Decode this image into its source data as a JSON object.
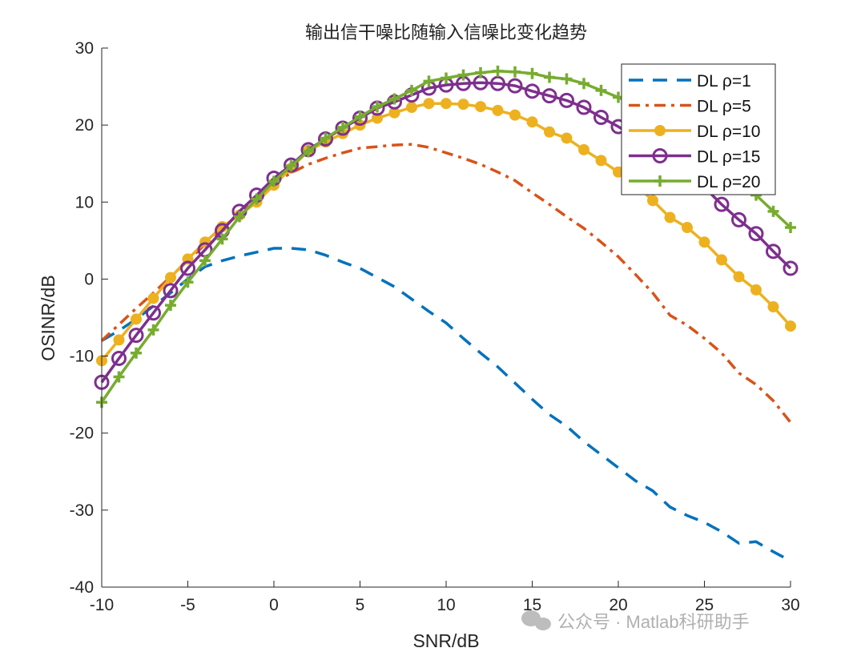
{
  "chart_data": {
    "type": "line",
    "title": "输出信干噪比随输入信噪比变化趋势",
    "xlabel": "SNR/dB",
    "ylabel": "OSINR/dB",
    "xlim": [
      -10,
      30
    ],
    "ylim": [
      -40,
      30
    ],
    "xticks": [
      -10,
      -5,
      0,
      5,
      10,
      15,
      20,
      25,
      30
    ],
    "yticks": [
      -40,
      -30,
      -20,
      -10,
      0,
      10,
      20,
      30
    ],
    "grid": false,
    "legend_position": "top-right",
    "x": [
      -10,
      -9,
      -8,
      -7,
      -6,
      -5,
      -4,
      -3,
      -2,
      -1,
      0,
      1,
      2,
      3,
      4,
      5,
      6,
      7,
      8,
      9,
      10,
      11,
      12,
      13,
      14,
      15,
      16,
      17,
      18,
      19,
      20,
      21,
      22,
      23,
      24,
      25,
      26,
      27,
      28,
      29,
      30
    ],
    "series": [
      {
        "name": "DL ρ=1",
        "color": "#0072BD",
        "style": "dashed",
        "marker": "none",
        "values": [
          -8,
          -6.7,
          -5.2,
          -3.5,
          -1.8,
          0,
          1.6,
          2.4,
          3,
          3.5,
          4,
          4,
          3.8,
          3.1,
          2.2,
          1.4,
          0.2,
          -1,
          -2.6,
          -4.2,
          -5.7,
          -7.7,
          -9.6,
          -11.4,
          -13.5,
          -15.6,
          -17.6,
          -19.1,
          -21.1,
          -22.8,
          -24.5,
          -26.2,
          -27.5,
          -29.6,
          -30.7,
          -31.6,
          -32.8,
          -34.3,
          -34.1,
          -35.4,
          -36.6
        ]
      },
      {
        "name": "DL ρ=5",
        "color": "#D95319",
        "style": "dashdot",
        "marker": "none",
        "values": [
          -8,
          -5.9,
          -3.8,
          -1.8,
          0.3,
          2.4,
          4.5,
          6.6,
          8.6,
          10.5,
          12.5,
          13.8,
          14.9,
          15.7,
          16.4,
          17,
          17.2,
          17.4,
          17.5,
          17.1,
          16.4,
          15.7,
          14.9,
          13.9,
          12.8,
          11.2,
          9.7,
          8.1,
          6.6,
          4.8,
          2.9,
          0.6,
          -1.8,
          -4.7,
          -6,
          -7.7,
          -9.6,
          -12.2,
          -13.7,
          -15.8,
          -18.6
        ]
      },
      {
        "name": "DL ρ=10",
        "color": "#EDB120",
        "style": "solid",
        "marker": "filled-circle",
        "values": [
          -10.6,
          -7.9,
          -5.2,
          -2.5,
          0.2,
          2.6,
          4.8,
          6.8,
          8.3,
          10,
          12.2,
          14.4,
          16.7,
          17.8,
          18.9,
          20,
          20.9,
          21.6,
          22.3,
          22.8,
          22.8,
          22.7,
          22.4,
          21.9,
          21.3,
          20.4,
          19.1,
          18.3,
          16.8,
          15.4,
          13.9,
          12.3,
          10.2,
          8,
          6.7,
          4.8,
          2.5,
          0.3,
          -1.4,
          -3.6,
          -6.1
        ]
      },
      {
        "name": "DL ρ=15",
        "color": "#7E2F8E",
        "style": "solid",
        "marker": "open-circle",
        "values": [
          -13.4,
          -10.3,
          -7.3,
          -4.4,
          -1.5,
          1.4,
          3.8,
          6.3,
          8.8,
          10.9,
          13.1,
          14.8,
          16.8,
          18.2,
          19.6,
          20.9,
          22.2,
          23,
          23.9,
          24.8,
          25.2,
          25.4,
          25.5,
          25.4,
          25.1,
          24.4,
          23.8,
          23.2,
          22.3,
          21,
          19.8,
          18.4,
          17.1,
          15.6,
          13.8,
          11.9,
          9.7,
          7.7,
          5.9,
          3.6,
          1.4
        ]
      },
      {
        "name": "DL ρ=20",
        "color": "#77AC30",
        "style": "solid",
        "marker": "plus",
        "values": [
          -16,
          -12.7,
          -9.6,
          -6.6,
          -3.4,
          -0.4,
          2.4,
          5.2,
          8.1,
          10.4,
          12.7,
          14.7,
          16.6,
          18.3,
          19.7,
          21.1,
          22.4,
          23.4,
          24.5,
          25.7,
          26.1,
          26.5,
          26.8,
          27,
          26.9,
          26.7,
          26.2,
          26,
          25.4,
          24.5,
          23.6,
          22.6,
          21.2,
          19.8,
          18.2,
          16.6,
          15,
          13.2,
          10.9,
          8.8,
          6.7
        ]
      }
    ]
  },
  "watermark": {
    "text": "公众号 · Matlab科研助手"
  }
}
